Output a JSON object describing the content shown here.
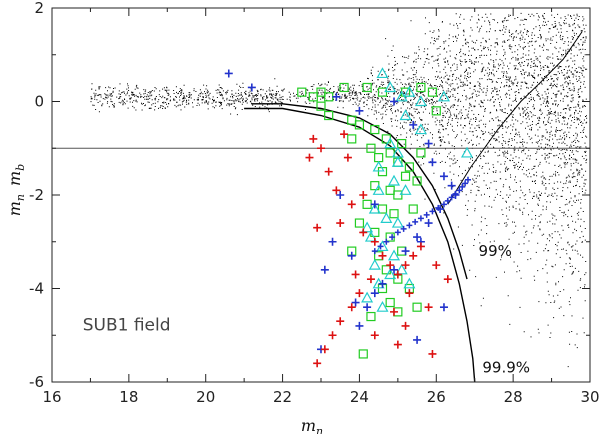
{
  "chart_data": {
    "type": "scatter",
    "title": "",
    "xlabel": "m_n",
    "ylabel": "m_n − m_b",
    "x_axis_label": {
      "main": "m",
      "sub": "n"
    },
    "y_axis_label": {
      "main1": "m",
      "sub1": "n",
      "main2": "m",
      "sub2": "b"
    },
    "xlim": [
      16,
      30
    ],
    "ylim": [
      -6,
      2
    ],
    "xticks": [
      16,
      18,
      20,
      22,
      24,
      26,
      28,
      30
    ],
    "yticks": [
      -6,
      -4,
      -2,
      0,
      2
    ],
    "grid": false,
    "reference_line_y": -1,
    "annotations": [
      {
        "text": "99%",
        "x": 27.1,
        "y": -3.3
      },
      {
        "text": "99.9%",
        "x": 27.2,
        "y": -5.8
      },
      {
        "text": "SUB1 field",
        "x": 16.8,
        "y": -4.9
      }
    ],
    "colors": {
      "background_points": "#000000",
      "green_squares": "#22cc22",
      "cyan_triangles": "#22cccc",
      "blue_plus": "#2233cc",
      "red_plus": "#dd1111",
      "curves": "#000000",
      "reference": "#555555"
    },
    "series": [
      {
        "marker": "square",
        "color": "#22cc22",
        "points": [
          [
            22.5,
            0.2
          ],
          [
            22.8,
            0.1
          ],
          [
            23.0,
            0.2
          ],
          [
            23.2,
            0.1
          ],
          [
            23.0,
            -0.1
          ],
          [
            23.6,
            0.3
          ],
          [
            24.2,
            0.3
          ],
          [
            24.6,
            0.2
          ],
          [
            25.2,
            0.2
          ],
          [
            25.6,
            0.3
          ],
          [
            25.9,
            0.2
          ],
          [
            26.0,
            -0.2
          ],
          [
            23.2,
            -0.3
          ],
          [
            23.8,
            -0.4
          ],
          [
            24.0,
            -0.5
          ],
          [
            24.4,
            -0.6
          ],
          [
            23.8,
            -0.8
          ],
          [
            24.3,
            -1.0
          ],
          [
            24.5,
            -1.2
          ],
          [
            24.8,
            -1.1
          ],
          [
            25.0,
            -1.3
          ],
          [
            24.6,
            -1.5
          ],
          [
            25.2,
            -1.6
          ],
          [
            24.4,
            -1.8
          ],
          [
            24.8,
            -1.9
          ],
          [
            25.0,
            -2.0
          ],
          [
            24.2,
            -2.2
          ],
          [
            24.6,
            -2.3
          ],
          [
            24.9,
            -2.4
          ],
          [
            25.4,
            -2.3
          ],
          [
            24.0,
            -2.6
          ],
          [
            24.4,
            -2.8
          ],
          [
            24.8,
            -2.9
          ],
          [
            23.8,
            -3.2
          ],
          [
            24.5,
            -3.3
          ],
          [
            25.1,
            -3.2
          ],
          [
            24.7,
            -3.6
          ],
          [
            25.0,
            -3.8
          ],
          [
            24.6,
            -4.0
          ],
          [
            25.3,
            -4.0
          ],
          [
            24.8,
            -4.3
          ],
          [
            25.5,
            -4.4
          ],
          [
            24.3,
            -4.6
          ],
          [
            25.0,
            -4.5
          ],
          [
            24.1,
            -5.4
          ],
          [
            25.6,
            -1.1
          ],
          [
            25.3,
            -1.4
          ],
          [
            25.5,
            -1.7
          ],
          [
            24.7,
            -0.8
          ],
          [
            25.1,
            -0.9
          ]
        ]
      },
      {
        "marker": "triangle",
        "color": "#22cccc",
        "points": [
          [
            24.6,
            0.6
          ],
          [
            24.8,
            0.3
          ],
          [
            25.1,
            0.1
          ],
          [
            25.3,
            0.2
          ],
          [
            25.6,
            0.0
          ],
          [
            26.2,
            0.1
          ],
          [
            25.2,
            -0.3
          ],
          [
            25.6,
            -0.6
          ],
          [
            24.8,
            -0.9
          ],
          [
            25.0,
            -1.1
          ],
          [
            24.5,
            -1.4
          ],
          [
            24.9,
            -1.7
          ],
          [
            25.2,
            -1.9
          ],
          [
            24.4,
            -2.3
          ],
          [
            24.7,
            -2.5
          ],
          [
            25.0,
            -2.6
          ],
          [
            24.3,
            -2.9
          ],
          [
            24.6,
            -3.1
          ],
          [
            24.9,
            -3.3
          ],
          [
            24.4,
            -3.5
          ],
          [
            24.8,
            -3.7
          ],
          [
            24.5,
            -3.9
          ],
          [
            25.1,
            -3.6
          ],
          [
            24.2,
            -4.2
          ],
          [
            24.6,
            -4.4
          ],
          [
            25.0,
            -1.3
          ],
          [
            24.5,
            -1.9
          ],
          [
            24.2,
            -2.7
          ],
          [
            25.3,
            -3.9
          ],
          [
            26.8,
            -1.1
          ]
        ]
      },
      {
        "marker": "plus",
        "color": "#2233cc",
        "points": [
          [
            20.6,
            0.6
          ],
          [
            21.2,
            0.3
          ],
          [
            23.4,
            0.1
          ],
          [
            24.0,
            -0.2
          ],
          [
            24.9,
            0.0
          ],
          [
            25.4,
            -0.5
          ],
          [
            25.8,
            -0.9
          ],
          [
            25.9,
            -1.3
          ],
          [
            26.2,
            -1.6
          ],
          [
            26.4,
            -1.8
          ],
          [
            26.5,
            -2.0
          ],
          [
            26.1,
            -2.3
          ],
          [
            25.8,
            -2.6
          ],
          [
            25.5,
            -2.9
          ],
          [
            25.2,
            -3.2
          ],
          [
            24.9,
            -3.6
          ],
          [
            24.6,
            -3.9
          ],
          [
            24.4,
            -4.1
          ],
          [
            24.2,
            -4.4
          ],
          [
            23.8,
            -3.3
          ],
          [
            23.3,
            -3.0
          ],
          [
            23.9,
            -4.3
          ],
          [
            24.4,
            -2.2
          ],
          [
            23.5,
            -2.0
          ],
          [
            25.6,
            -3.0
          ],
          [
            23.1,
            -3.6
          ],
          [
            24.0,
            -4.8
          ],
          [
            23.0,
            -5.3
          ],
          [
            26.2,
            -4.4
          ],
          [
            25.5,
            -5.1
          ]
        ]
      },
      {
        "marker": "plus",
        "color": "#dd1111",
        "points": [
          [
            22.8,
            -0.8
          ],
          [
            23.6,
            -0.7
          ],
          [
            23.2,
            -1.5
          ],
          [
            23.0,
            -1.0
          ],
          [
            23.4,
            -1.9
          ],
          [
            23.8,
            -2.2
          ],
          [
            23.5,
            -2.6
          ],
          [
            24.1,
            -2.8
          ],
          [
            24.4,
            -3.0
          ],
          [
            24.6,
            -3.3
          ],
          [
            24.8,
            -3.5
          ],
          [
            25.0,
            -3.7
          ],
          [
            25.2,
            -3.5
          ],
          [
            25.4,
            -3.3
          ],
          [
            25.6,
            -3.1
          ],
          [
            24.3,
            -3.8
          ],
          [
            24.0,
            -4.1
          ],
          [
            23.8,
            -4.4
          ],
          [
            23.5,
            -4.7
          ],
          [
            23.3,
            -5.0
          ],
          [
            23.1,
            -5.3
          ],
          [
            22.9,
            -5.6
          ],
          [
            24.9,
            -4.5
          ],
          [
            25.2,
            -4.8
          ],
          [
            25.0,
            -5.2
          ],
          [
            24.4,
            -5.0
          ],
          [
            25.8,
            -4.4
          ],
          [
            25.9,
            -5.4
          ],
          [
            26.3,
            -3.8
          ],
          [
            23.9,
            -3.7
          ],
          [
            22.7,
            -1.2
          ],
          [
            23.7,
            -1.2
          ],
          [
            24.1,
            -2.0
          ],
          [
            22.9,
            -2.7
          ],
          [
            25.3,
            -4.1
          ],
          [
            26.0,
            -3.5
          ]
        ]
      }
    ],
    "diagonal_line": [
      [
        24.4,
        -3.2
      ],
      [
        25.0,
        -2.8
      ],
      [
        25.6,
        -2.5
      ],
      [
        26.2,
        -2.2
      ],
      [
        26.6,
        -1.9
      ],
      [
        26.9,
        -1.6
      ]
    ],
    "curve_99": [
      [
        21.2,
        -0.05
      ],
      [
        22.0,
        -0.05
      ],
      [
        23.0,
        -0.15
      ],
      [
        24.0,
        -0.35
      ],
      [
        24.8,
        -0.7
      ],
      [
        25.4,
        -1.2
      ],
      [
        25.9,
        -1.8
      ],
      [
        26.3,
        -2.5
      ],
      [
        26.6,
        -3.2
      ],
      [
        26.8,
        -3.8
      ]
    ],
    "curve_99_9": [
      [
        21.0,
        -0.15
      ],
      [
        22.0,
        -0.15
      ],
      [
        23.0,
        -0.3
      ],
      [
        24.0,
        -0.55
      ],
      [
        24.8,
        -0.95
      ],
      [
        25.4,
        -1.5
      ],
      [
        25.9,
        -2.2
      ],
      [
        26.3,
        -3.0
      ],
      [
        26.6,
        -3.9
      ],
      [
        26.8,
        -4.7
      ],
      [
        26.95,
        -5.5
      ],
      [
        27.0,
        -6.0
      ]
    ],
    "limit_line": [
      [
        26.3,
        -2.2
      ],
      [
        26.9,
        -1.4
      ],
      [
        27.6,
        -0.6
      ],
      [
        28.2,
        0.0
      ],
      [
        28.7,
        0.4
      ],
      [
        29.3,
        0.9
      ],
      [
        29.8,
        1.5
      ]
    ]
  }
}
